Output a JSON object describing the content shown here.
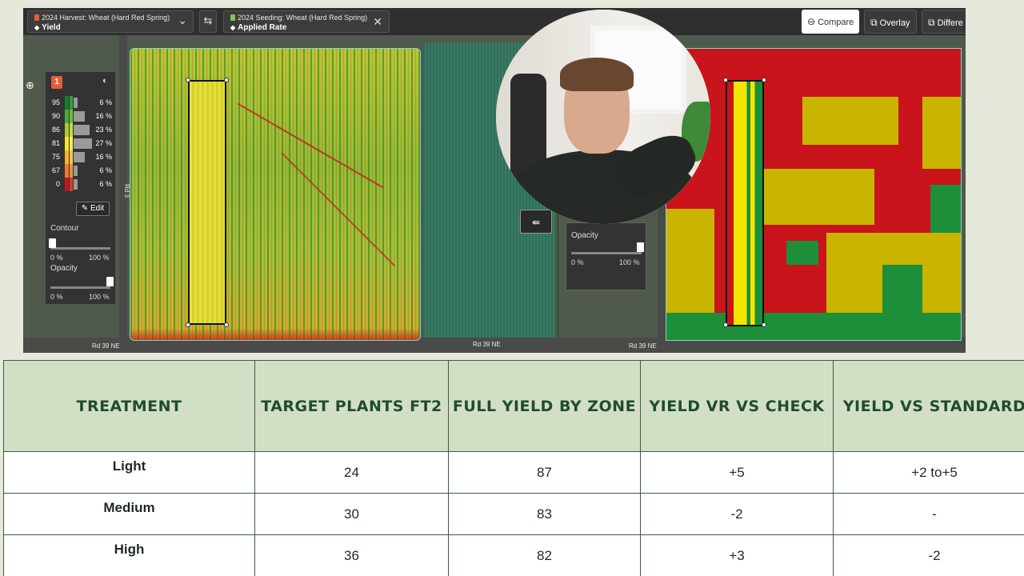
{
  "app": {
    "layer_left": {
      "line1": "2024 Harvest: Wheat (Hard Red Spring)",
      "line2": "Yield",
      "swatch_color": "#e0603a"
    },
    "layer_right": {
      "line1": "2024 Seeding: Wheat (Hard Red Spring)",
      "line2": "Applied Rate",
      "swatch_color": "#8bc34a"
    },
    "swap_icon": "⇆",
    "modes": {
      "compare": "Compare",
      "overlay": "Overlay",
      "difference": "Differe"
    },
    "roads": {
      "bottom_left": "Rd 39 NE",
      "bottom_mid": "Rd 39 NE",
      "bottom_right": "Rd 39 NE",
      "vertical": "Rd 3"
    }
  },
  "legend": {
    "badge": "1",
    "rows": [
      {
        "label": "95",
        "pct": "6 %",
        "color": "#1a7a2e",
        "color2": "#2aa244",
        "share": 6
      },
      {
        "label": "90",
        "pct": "16 %",
        "color": "#4ea93a",
        "color2": "#72bd3c",
        "share": 16
      },
      {
        "label": "86",
        "pct": "23 %",
        "color": "#a7c93a",
        "color2": "#c7d83b",
        "share": 23
      },
      {
        "label": "81",
        "pct": "27 %",
        "color": "#f3e52a",
        "color2": "#f6ee4a",
        "share": 27
      },
      {
        "label": "75",
        "pct": "16 %",
        "color": "#f5b52c",
        "color2": "#f6c24a",
        "share": 16
      },
      {
        "label": "67",
        "pct": "6 %",
        "color": "#ee7b2a",
        "color2": "#f08d3a",
        "share": 6
      },
      {
        "label": "0",
        "pct": "6 %",
        "color": "#c8141a",
        "color2": "#d93a30",
        "share": 6
      }
    ],
    "edit_label": "Edit",
    "contour_label": "Contour",
    "opacity_label": "Opacity",
    "range_min": "0 %",
    "range_max": "100 %"
  },
  "right_panel": {
    "opacity_label": "Opacity",
    "range_min": "0 %",
    "range_max": "100 %"
  },
  "table": {
    "headers": [
      "Treatment",
      "Target plants ft2",
      "Full Yield by Zone",
      "Yield VR vs Check",
      "Yield vs standard"
    ],
    "rows": [
      [
        "Light",
        "24",
        "87",
        "+5",
        "+2 to+5"
      ],
      [
        "Medium",
        "30",
        "83",
        "-2",
        "-"
      ],
      [
        "High",
        "36",
        "82",
        "+3",
        "-2"
      ]
    ]
  }
}
